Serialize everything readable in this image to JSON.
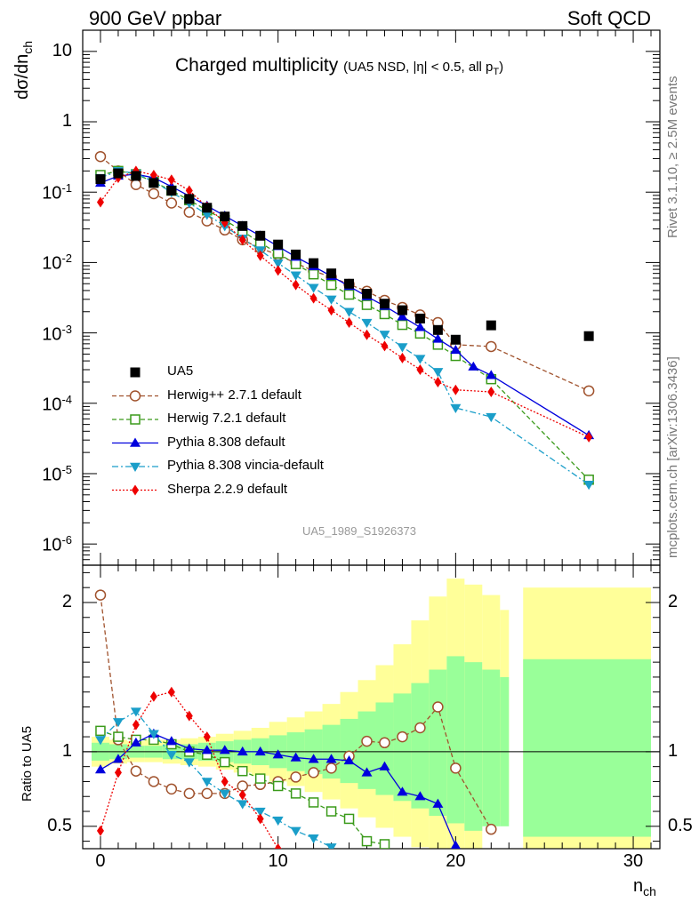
{
  "header": {
    "left": "900 GeV ppbar",
    "right": "Soft QCD"
  },
  "side_labels": {
    "rivet": "Rivet 3.1.10, ≥ 2.5M events",
    "mcplots": "mcplots.cern.ch [arXiv:1306.3436]"
  },
  "chart_data": {
    "type": "line",
    "title": "Charged multiplicity",
    "title_note": "(UA5 NSD, |η| < 0.5, all p",
    "title_note_sub": "T",
    "title_note_end": ")",
    "reference_name": "UA5_1989_S1926373",
    "ylabel_top": "dσ/dn",
    "ylabel_top_sub": "ch",
    "ylabel_bottom": "Ratio to UA5",
    "xlabel": "n",
    "xlabel_sub": "ch",
    "xlim": [
      -1,
      31.5
    ],
    "ylim_top": [
      5e-07,
      20
    ],
    "ylim_top_scale": "log",
    "ylim_bottom": [
      0.35,
      2.25
    ],
    "x_ticks": [
      0,
      10,
      20,
      30
    ],
    "y_ticks_top": [
      {
        "v": 10,
        "l": "10"
      },
      {
        "v": 1,
        "l": "1"
      },
      {
        "v": 0.1,
        "l": "10",
        "e": "-1"
      },
      {
        "v": 0.01,
        "l": "10",
        "e": "-2"
      },
      {
        "v": 0.001,
        "l": "10",
        "e": "-3"
      },
      {
        "v": 0.0001,
        "l": "10",
        "e": "-4"
      },
      {
        "v": 1e-05,
        "l": "10",
        "e": "-5"
      },
      {
        "v": 1e-06,
        "l": "10",
        "e": "-6"
      }
    ],
    "y_ticks_bottom": [
      {
        "v": 2,
        "l": "2"
      },
      {
        "v": 1,
        "l": "1"
      },
      {
        "v": 0.5,
        "l": "0.5"
      }
    ],
    "uncertainty_bands": [
      {
        "x0": -0.5,
        "x1": 0.5,
        "ylo": 0.9,
        "yhi": 1.1,
        "glo": 0.94,
        "ghi": 1.06
      },
      {
        "x0": 0.5,
        "x1": 1.5,
        "ylo": 0.92,
        "yhi": 1.08,
        "glo": 0.95,
        "ghi": 1.05
      },
      {
        "x0": 1.5,
        "x1": 2.5,
        "ylo": 0.93,
        "yhi": 1.07,
        "glo": 0.96,
        "ghi": 1.04
      },
      {
        "x0": 2.5,
        "x1": 3.5,
        "ylo": 0.93,
        "yhi": 1.08,
        "glo": 0.96,
        "ghi": 1.04
      },
      {
        "x0": 3.5,
        "x1": 4.5,
        "ylo": 0.92,
        "yhi": 1.08,
        "glo": 0.95,
        "ghi": 1.05
      },
      {
        "x0": 4.5,
        "x1": 5.5,
        "ylo": 0.91,
        "yhi": 1.09,
        "glo": 0.95,
        "ghi": 1.05
      },
      {
        "x0": 5.5,
        "x1": 6.5,
        "ylo": 0.9,
        "yhi": 1.1,
        "glo": 0.94,
        "ghi": 1.06
      },
      {
        "x0": 6.5,
        "x1": 7.5,
        "ylo": 0.88,
        "yhi": 1.12,
        "glo": 0.93,
        "ghi": 1.07
      },
      {
        "x0": 7.5,
        "x1": 8.5,
        "ylo": 0.86,
        "yhi": 1.14,
        "glo": 0.92,
        "ghi": 1.08
      },
      {
        "x0": 8.5,
        "x1": 9.5,
        "ylo": 0.84,
        "yhi": 1.16,
        "glo": 0.91,
        "ghi": 1.09
      },
      {
        "x0": 9.5,
        "x1": 10.5,
        "ylo": 0.8,
        "yhi": 1.2,
        "glo": 0.89,
        "ghi": 1.11
      },
      {
        "x0": 10.5,
        "x1": 11.5,
        "ylo": 0.77,
        "yhi": 1.23,
        "glo": 0.87,
        "ghi": 1.13
      },
      {
        "x0": 11.5,
        "x1": 12.5,
        "ylo": 0.73,
        "yhi": 1.27,
        "glo": 0.85,
        "ghi": 1.15
      },
      {
        "x0": 12.5,
        "x1": 13.5,
        "ylo": 0.68,
        "yhi": 1.32,
        "glo": 0.82,
        "ghi": 1.18
      },
      {
        "x0": 13.5,
        "x1": 14.5,
        "ylo": 0.62,
        "yhi": 1.4,
        "glo": 0.79,
        "ghi": 1.22
      },
      {
        "x0": 14.5,
        "x1": 15.5,
        "ylo": 0.56,
        "yhi": 1.48,
        "glo": 0.75,
        "ghi": 1.27
      },
      {
        "x0": 15.5,
        "x1": 16.5,
        "ylo": 0.49,
        "yhi": 1.58,
        "glo": 0.71,
        "ghi": 1.33
      },
      {
        "x0": 16.5,
        "x1": 17.5,
        "ylo": 0.43,
        "yhi": 1.72,
        "glo": 0.67,
        "ghi": 1.39
      },
      {
        "x0": 17.5,
        "x1": 18.5,
        "ylo": 0.36,
        "yhi": 1.88,
        "glo": 0.62,
        "ghi": 1.46
      },
      {
        "x0": 18.5,
        "x1": 19.5,
        "ylo": 0.35,
        "yhi": 2.04,
        "glo": 0.57,
        "ghi": 1.55
      },
      {
        "x0": 19.5,
        "x1": 20.5,
        "ylo": 0.35,
        "yhi": 2.16,
        "glo": 0.52,
        "ghi": 1.64
      },
      {
        "x0": 20.5,
        "x1": 21.5,
        "ylo": 0.35,
        "yhi": 2.12,
        "glo": 0.47,
        "ghi": 1.6
      },
      {
        "x0": 21.5,
        "x1": 22.5,
        "ylo": 0.53,
        "yhi": 2.05,
        "glo": 0.5,
        "ghi": 1.55
      },
      {
        "x0": 22.5,
        "x1": 23.0,
        "ylo": 0.53,
        "yhi": 1.95,
        "glo": 0.5,
        "ghi": 1.5
      },
      {
        "x0": 23.8,
        "x1": 31.0,
        "ylo": 0.35,
        "yhi": 2.1,
        "glo": 0.43,
        "ghi": 1.62
      }
    ],
    "reference": {
      "name": "UA5",
      "x": [
        0,
        1,
        2,
        3,
        4,
        5,
        6,
        7,
        8,
        9,
        10,
        11,
        12,
        13,
        14,
        15,
        16,
        17,
        18,
        19,
        20,
        22,
        27.5
      ],
      "y": [
        0.153,
        0.185,
        0.17,
        0.135,
        0.105,
        0.08,
        0.06,
        0.045,
        0.033,
        0.024,
        0.018,
        0.013,
        0.0098,
        0.007,
        0.005,
        0.0036,
        0.0026,
        0.0021,
        0.0016,
        0.0011,
        0.0008,
        0.00128,
        0.0009
      ]
    },
    "series": [
      {
        "name": "Herwig++ 2.7.1 default",
        "color": "#a0522d",
        "dash": "5,3",
        "marker": "open-circle",
        "x": [
          0,
          1,
          2,
          3,
          4,
          5,
          6,
          7,
          8,
          9,
          10,
          11,
          12,
          13,
          14,
          15,
          16,
          17,
          18,
          19,
          20,
          22,
          27.5
        ],
        "y": [
          0.32,
          0.2,
          0.128,
          0.095,
          0.07,
          0.052,
          0.039,
          0.029,
          0.021,
          0.016,
          0.0128,
          0.0098,
          0.0076,
          0.0062,
          0.0049,
          0.0039,
          0.0029,
          0.0023,
          0.0018,
          0.0014,
          0.00068,
          0.00064,
          0.00015
        ],
        "ratio_x": [
          0,
          1,
          2,
          3,
          4,
          5,
          6,
          7,
          8,
          9,
          10,
          11,
          12,
          13,
          14,
          15,
          16,
          17,
          18,
          19,
          20,
          22
        ],
        "ratio_y": [
          2.05,
          1.08,
          0.87,
          0.8,
          0.75,
          0.72,
          0.72,
          0.72,
          0.77,
          0.78,
          0.8,
          0.83,
          0.86,
          0.89,
          0.97,
          1.07,
          1.06,
          1.1,
          1.16,
          1.3,
          0.89,
          0.48
        ]
      },
      {
        "name": "Herwig 7.2.1 default",
        "color": "#3a9a1a",
        "dash": "5,3",
        "marker": "open-square",
        "x": [
          0,
          1,
          2,
          3,
          4,
          5,
          6,
          7,
          8,
          9,
          10,
          11,
          12,
          13,
          14,
          15,
          16,
          17,
          18,
          19,
          20,
          22,
          27.5
        ],
        "y": [
          0.175,
          0.2,
          0.18,
          0.14,
          0.105,
          0.077,
          0.055,
          0.04,
          0.028,
          0.019,
          0.0135,
          0.0095,
          0.0068,
          0.0048,
          0.0035,
          0.0025,
          0.00185,
          0.0013,
          0.00098,
          0.00068,
          0.00047,
          0.00022,
          8.2e-06
        ],
        "ratio_x": [
          0,
          1,
          2,
          3,
          4,
          5,
          6,
          7,
          8,
          9,
          10,
          11,
          12,
          13,
          14,
          15,
          16
        ],
        "ratio_y": [
          1.14,
          1.1,
          1.08,
          1.08,
          1.05,
          1.0,
          0.98,
          0.93,
          0.87,
          0.82,
          0.77,
          0.72,
          0.66,
          0.6,
          0.55,
          0.4,
          0.38
        ]
      },
      {
        "name": "Pythia 8.308 default",
        "color": "#0000dd",
        "dash": "",
        "marker": "filled-triangle-up",
        "x": [
          0,
          1,
          2,
          3,
          4,
          5,
          6,
          7,
          8,
          9,
          10,
          11,
          12,
          13,
          14,
          15,
          16,
          17,
          18,
          19,
          20,
          21,
          22,
          27.5
        ],
        "y": [
          0.135,
          0.17,
          0.18,
          0.16,
          0.12,
          0.088,
          0.064,
          0.046,
          0.033,
          0.024,
          0.017,
          0.012,
          0.0088,
          0.0064,
          0.0046,
          0.0033,
          0.0024,
          0.0017,
          0.0012,
          0.00082,
          0.00057,
          0.00033,
          0.00025,
          3.5e-05
        ],
        "ratio_x": [
          0,
          1,
          2,
          3,
          4,
          5,
          6,
          7,
          8,
          9,
          10,
          11,
          12,
          13,
          14,
          15,
          16,
          17,
          18,
          19,
          20
        ],
        "ratio_y": [
          0.88,
          0.95,
          1.06,
          1.12,
          1.07,
          1.02,
          1.01,
          1.01,
          1.0,
          1.0,
          0.98,
          0.96,
          0.95,
          0.95,
          0.94,
          0.86,
          0.9,
          0.73,
          0.7,
          0.65,
          0.37
        ]
      },
      {
        "name": "Pythia 8.308 vincia-default",
        "color": "#1a9ec9",
        "dash": "7,3,2,3",
        "marker": "filled-triangle-down",
        "x": [
          0,
          1,
          2,
          3,
          4,
          5,
          6,
          7,
          8,
          9,
          10,
          11,
          12,
          13,
          14,
          15,
          16,
          17,
          18,
          19,
          20,
          22,
          27.5
        ],
        "y": [
          0.16,
          0.2,
          0.185,
          0.14,
          0.1,
          0.07,
          0.048,
          0.033,
          0.022,
          0.015,
          0.0098,
          0.0066,
          0.0044,
          0.003,
          0.002,
          0.0014,
          0.00095,
          0.00063,
          0.00043,
          0.00028,
          8.6e-05,
          6.4e-05,
          7e-06
        ],
        "ratio_x": [
          0,
          1,
          2,
          3,
          4,
          5,
          6,
          7,
          8,
          9,
          10,
          11,
          12,
          13
        ],
        "ratio_y": [
          1.08,
          1.2,
          1.27,
          1.12,
          0.98,
          0.93,
          0.8,
          0.72,
          0.65,
          0.6,
          0.54,
          0.47,
          0.42,
          0.36
        ]
      },
      {
        "name": "Sherpa 2.2.9 default",
        "color": "#ee0000",
        "dash": "2,2",
        "marker": "filled-diamond",
        "x": [
          0,
          1,
          2,
          3,
          4,
          5,
          6,
          7,
          8,
          9,
          10,
          11,
          12,
          13,
          14,
          15,
          16,
          17,
          18,
          19,
          20,
          22,
          27.5
        ],
        "y": [
          0.072,
          0.16,
          0.2,
          0.175,
          0.15,
          0.105,
          0.062,
          0.037,
          0.021,
          0.0125,
          0.0077,
          0.0048,
          0.0031,
          0.0021,
          0.0014,
          0.00094,
          0.00065,
          0.00044,
          0.0003,
          0.0002,
          0.000155,
          0.000145,
          3.3e-05
        ],
        "ratio_x": [
          0,
          1,
          2,
          3,
          4,
          5,
          6,
          7,
          8,
          9,
          10
        ],
        "ratio_y": [
          0.47,
          0.86,
          1.18,
          1.37,
          1.4,
          1.24,
          1.1,
          0.8,
          0.71,
          0.55,
          0.35
        ]
      }
    ]
  }
}
